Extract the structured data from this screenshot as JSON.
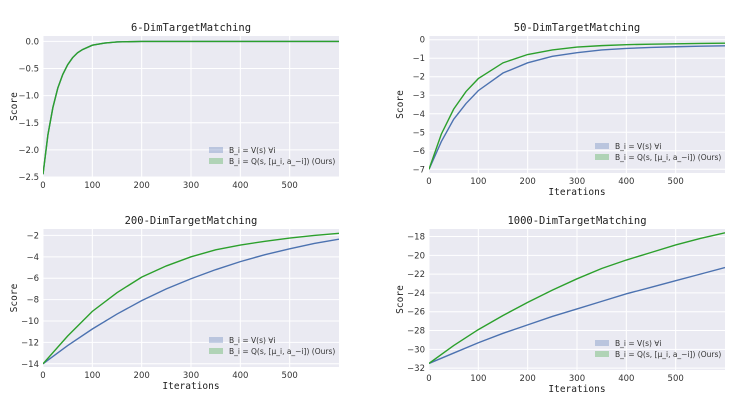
{
  "chart_data": [
    {
      "type": "line",
      "title": "6-DimTargetMatching",
      "xlabel": "",
      "ylabel": "Score",
      "xlim": [
        0,
        600
      ],
      "ylim": [
        -2.5,
        0.1
      ],
      "xticks": [
        0,
        100,
        200,
        300,
        400,
        500
      ],
      "xtick_labels": [
        "0",
        "100",
        "200",
        "300",
        "400",
        "500"
      ],
      "yticks": [
        0.0,
        -0.5,
        -1.0,
        -1.5,
        -2.0,
        -2.5
      ],
      "ytick_labels": [
        "0.0",
        "−0.5",
        "−1.0",
        "−1.5",
        "−2.0",
        "−2.5"
      ],
      "grid": true,
      "legend_position": "bottom-right",
      "series": [
        {
          "name": "B_i = V(s) ∀i",
          "color": "#4c72b0",
          "x": [
            0,
            10,
            20,
            30,
            40,
            50,
            60,
            70,
            80,
            100,
            125,
            150,
            200,
            300,
            400,
            500,
            600
          ],
          "y": [
            -2.45,
            -1.72,
            -1.22,
            -0.86,
            -0.61,
            -0.43,
            -0.3,
            -0.21,
            -0.15,
            -0.07,
            -0.03,
            -0.01,
            0.0,
            0.0,
            0.0,
            0.0,
            0.0
          ]
        },
        {
          "name": "B_i = Q(s, [μ_i, a_−i]) (Ours)",
          "color": "#2ca02c",
          "x": [
            0,
            10,
            20,
            30,
            40,
            50,
            60,
            70,
            80,
            100,
            125,
            150,
            200,
            300,
            400,
            500,
            600
          ],
          "y": [
            -2.45,
            -1.72,
            -1.22,
            -0.86,
            -0.61,
            -0.43,
            -0.3,
            -0.21,
            -0.15,
            -0.07,
            -0.03,
            -0.01,
            0.0,
            0.0,
            0.0,
            0.0,
            0.0
          ]
        }
      ],
      "legend_labels": [
        "B_i = V(s) ∀i",
        "B_i = Q(s, [μ_i, a_−i]) (Ours)"
      ]
    },
    {
      "type": "line",
      "title": "50-DimTargetMatching",
      "xlabel": "Iterations",
      "ylabel": "Score",
      "xlim": [
        0,
        600
      ],
      "ylim": [
        -7.2,
        0.2
      ],
      "xticks": [
        0,
        100,
        200,
        300,
        400,
        500
      ],
      "xtick_labels": [
        "0",
        "100",
        "200",
        "300",
        "400",
        "500"
      ],
      "yticks": [
        0,
        -1,
        -2,
        -3,
        -4,
        -5,
        -6,
        -7
      ],
      "ytick_labels": [
        "0",
        "−1",
        "−2",
        "−3",
        "−4",
        "−5",
        "−6",
        "−7"
      ],
      "grid": true,
      "legend_position": "bottom-right",
      "series": [
        {
          "name": "B_i = V(s) ∀i",
          "color": "#4c72b0",
          "x": [
            0,
            25,
            50,
            75,
            100,
            150,
            200,
            250,
            300,
            350,
            400,
            450,
            500,
            550,
            600
          ],
          "y": [
            -7.0,
            -5.5,
            -4.3,
            -3.45,
            -2.75,
            -1.8,
            -1.25,
            -0.9,
            -0.7,
            -0.55,
            -0.47,
            -0.42,
            -0.38,
            -0.35,
            -0.33
          ]
        },
        {
          "name": "B_i = Q(s, [μ_i, a_−i]) (Ours)",
          "color": "#2ca02c",
          "x": [
            0,
            25,
            50,
            75,
            100,
            150,
            200,
            250,
            300,
            350,
            400,
            450,
            500,
            550,
            600
          ],
          "y": [
            -7.0,
            -5.1,
            -3.75,
            -2.8,
            -2.1,
            -1.25,
            -0.8,
            -0.55,
            -0.4,
            -0.32,
            -0.27,
            -0.24,
            -0.22,
            -0.2,
            -0.19
          ]
        }
      ],
      "legend_labels": [
        "B_i = V(s) ∀i",
        "B_i = Q(s, [μ_i, a_−i]) (Ours)"
      ]
    },
    {
      "type": "line",
      "title": "200-DimTargetMatching",
      "xlabel": "Iterations",
      "ylabel": "Score",
      "xlim": [
        0,
        600
      ],
      "ylim": [
        -14.3,
        -1.4
      ],
      "xticks": [
        0,
        100,
        200,
        300,
        400,
        500
      ],
      "xtick_labels": [
        "0",
        "100",
        "200",
        "300",
        "400",
        "500"
      ],
      "yticks": [
        -2,
        -4,
        -6,
        -8,
        -10,
        -12,
        -14
      ],
      "ytick_labels": [
        "−2",
        "−4",
        "−6",
        "−8",
        "−10",
        "−12",
        "−14"
      ],
      "grid": true,
      "legend_position": "bottom-right",
      "series": [
        {
          "name": "B_i = V(s) ∀i",
          "color": "#4c72b0",
          "x": [
            0,
            50,
            100,
            150,
            200,
            250,
            300,
            350,
            400,
            450,
            500,
            550,
            600
          ],
          "y": [
            -14.0,
            -12.3,
            -10.75,
            -9.35,
            -8.1,
            -7.0,
            -6.05,
            -5.2,
            -4.45,
            -3.8,
            -3.25,
            -2.75,
            -2.35
          ]
        },
        {
          "name": "B_i = Q(s, [μ_i, a_−i]) (Ours)",
          "color": "#2ca02c",
          "x": [
            0,
            50,
            100,
            150,
            200,
            250,
            300,
            350,
            400,
            450,
            500,
            550,
            600
          ],
          "y": [
            -14.0,
            -11.4,
            -9.1,
            -7.35,
            -5.9,
            -4.85,
            -4.0,
            -3.35,
            -2.9,
            -2.55,
            -2.25,
            -2.0,
            -1.8
          ]
        }
      ],
      "legend_labels": [
        "B_i = V(s) ∀i",
        "B_i = Q(s, [μ_i, a_−i]) (Ours)"
      ]
    },
    {
      "type": "line",
      "title": "1000-DimTargetMatching",
      "xlabel": "Iterations",
      "ylabel": "Score",
      "xlim": [
        0,
        600
      ],
      "ylim": [
        -32.2,
        -17.2
      ],
      "xticks": [
        0,
        100,
        200,
        300,
        400,
        500
      ],
      "xtick_labels": [
        "0",
        "100",
        "200",
        "300",
        "400",
        "500"
      ],
      "yticks": [
        -18,
        -20,
        -22,
        -24,
        -26,
        -28,
        -30,
        -32
      ],
      "ytick_labels": [
        "−18",
        "−20",
        "−22",
        "−24",
        "−26",
        "−28",
        "−30",
        "−32"
      ],
      "grid": true,
      "legend_position": "bottom-right",
      "series": [
        {
          "name": "B_i = V(s) ∀i",
          "color": "#4c72b0",
          "x": [
            0,
            50,
            100,
            150,
            200,
            250,
            300,
            350,
            400,
            450,
            500,
            550,
            600
          ],
          "y": [
            -31.5,
            -30.4,
            -29.3,
            -28.3,
            -27.4,
            -26.5,
            -25.7,
            -24.9,
            -24.1,
            -23.4,
            -22.7,
            -22.0,
            -21.3
          ]
        },
        {
          "name": "B_i = Q(s, [μ_i, a_−i]) (Ours)",
          "color": "#2ca02c",
          "x": [
            0,
            50,
            100,
            150,
            200,
            250,
            300,
            350,
            400,
            450,
            500,
            550,
            600
          ],
          "y": [
            -31.5,
            -29.6,
            -27.9,
            -26.4,
            -25.0,
            -23.7,
            -22.5,
            -21.4,
            -20.5,
            -19.7,
            -18.9,
            -18.2,
            -17.6
          ]
        }
      ],
      "legend_labels": [
        "B_i = V(s) ∀i",
        "B_i = Q(s, [μ_i, a_−i]) (Ours)"
      ]
    }
  ]
}
